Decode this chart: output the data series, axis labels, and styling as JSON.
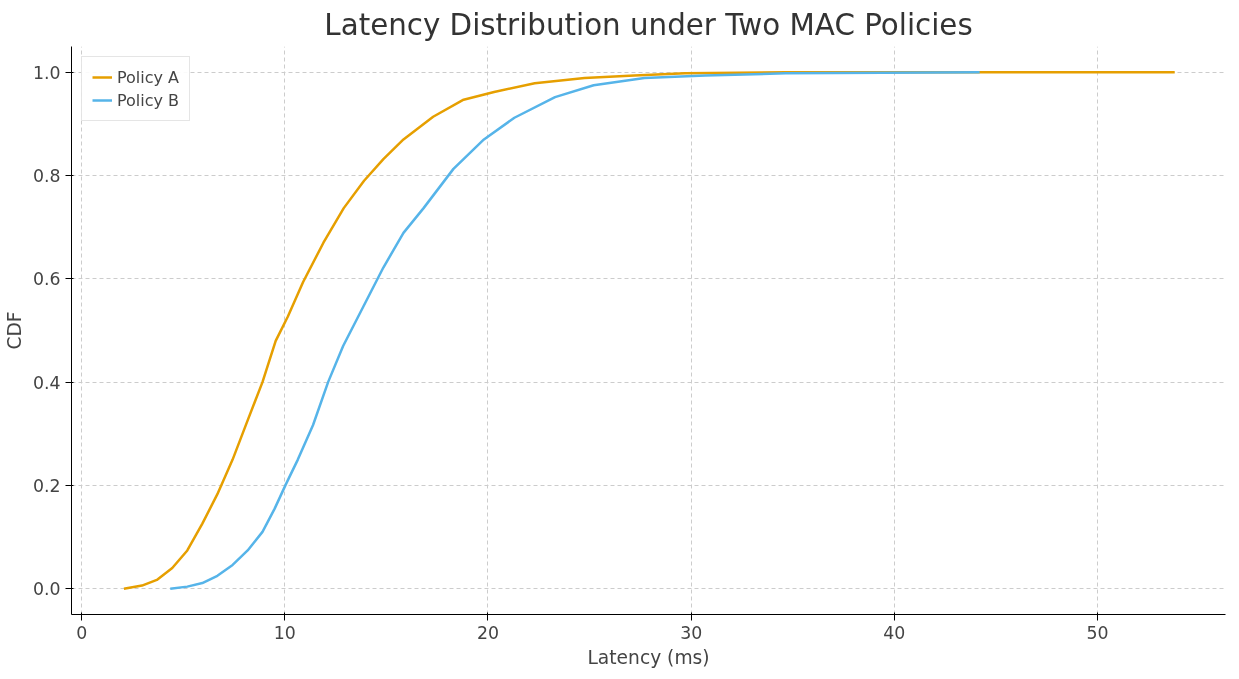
{
  "chart_data": {
    "type": "line",
    "title": "Latency Distribution under Two MAC Policies",
    "xlabel": "Latency (ms)",
    "ylabel": "CDF",
    "xlim": [
      -0.5,
      56.3
    ],
    "ylim": [
      -0.05,
      1.05
    ],
    "xticks": [
      0,
      10,
      20,
      30,
      40,
      50
    ],
    "yticks": [
      {
        "value": 0,
        "label": "0.0"
      },
      {
        "value": 0.2,
        "label": "0.2"
      },
      {
        "value": 0.4,
        "label": "0.4"
      },
      {
        "value": 0.6,
        "label": "0.6"
      },
      {
        "value": 0.8,
        "label": "0.8"
      },
      {
        "value": 1,
        "label": "1.0"
      }
    ],
    "grid": true,
    "legend": "top left",
    "line_style": "solid",
    "marker": "none",
    "series": [
      {
        "name": "Policy A",
        "color": "#e69f00",
        "x": [
          2.08,
          2.97,
          3.7,
          4.46,
          5.2,
          5.94,
          6.68,
          7.43,
          8.17,
          8.9,
          9.55,
          10.15,
          10.9,
          11.9,
          12.9,
          13.9,
          14.85,
          15.84,
          17.3,
          18.8,
          20.3,
          22.3,
          24.75,
          27.2,
          29.7,
          34.65,
          53.8
        ],
        "values": [
          0,
          0.006,
          0.017,
          0.04,
          0.074,
          0.126,
          0.183,
          0.25,
          0.326,
          0.4,
          0.48,
          0.527,
          0.594,
          0.67,
          0.737,
          0.79,
          0.832,
          0.87,
          0.914,
          0.947,
          0.962,
          0.979,
          0.989,
          0.994,
          0.998,
          1.0,
          1.0
        ]
      },
      {
        "name": "Policy B",
        "color": "#56b4e9",
        "x": [
          4.36,
          5.2,
          5.94,
          6.68,
          7.43,
          8.17,
          8.9,
          9.5,
          10.05,
          10.64,
          11.39,
          12.13,
          12.87,
          13.86,
          14.85,
          15.84,
          16.83,
          18.3,
          19.8,
          21.3,
          23.3,
          25.2,
          27.7,
          30.7,
          34.65,
          44.2
        ],
        "values": [
          0,
          0.004,
          0.011,
          0.025,
          0.046,
          0.074,
          0.11,
          0.155,
          0.202,
          0.25,
          0.317,
          0.4,
          0.47,
          0.546,
          0.622,
          0.689,
          0.737,
          0.813,
          0.87,
          0.912,
          0.952,
          0.975,
          0.989,
          0.994,
          0.998,
          1.0
        ]
      }
    ]
  }
}
